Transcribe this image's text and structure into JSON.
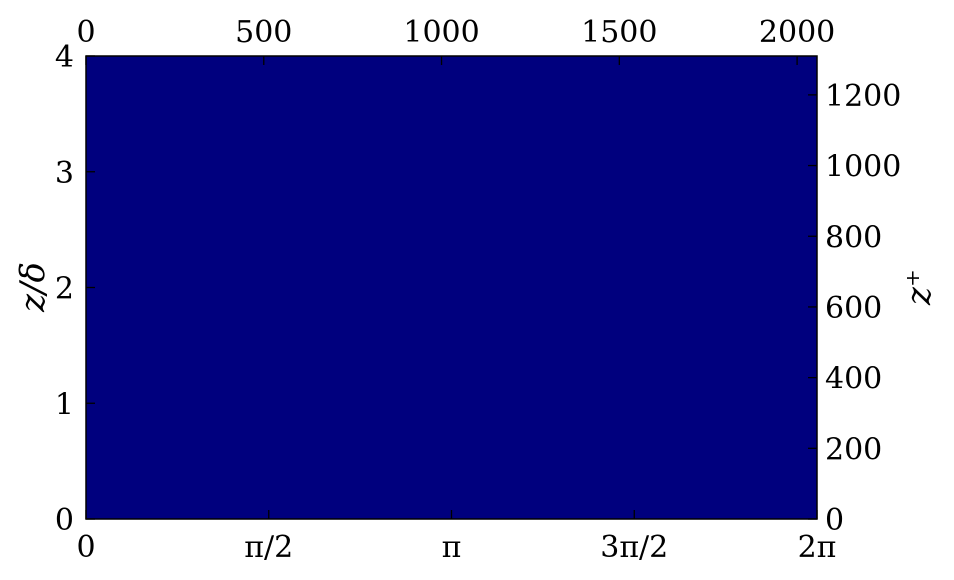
{
  "chart_data": {
    "type": "heatmap",
    "colormap": "jet",
    "colormap_colors": [
      "#00007f",
      "#0000ff",
      "#0080ff",
      "#00ffff",
      "#80ff80",
      "#ffff00",
      "#ff8000",
      "#ff0000",
      "#7f0000"
    ],
    "xlim": [
      0,
      6.283185307
    ],
    "ylim": [
      0,
      4
    ],
    "x_ticks": [
      {
        "value": 0,
        "label": "0"
      },
      {
        "value": 1.570796327,
        "label": "π/2"
      },
      {
        "value": 3.141592654,
        "label": "π"
      },
      {
        "value": 4.71238898,
        "label": "3π/2"
      },
      {
        "value": 6.283185307,
        "label": "2π"
      }
    ],
    "y_ticks": [
      {
        "value": 0,
        "label": "0"
      },
      {
        "value": 1,
        "label": "1"
      },
      {
        "value": 2,
        "label": "2"
      },
      {
        "value": 3,
        "label": "3"
      },
      {
        "value": 4,
        "label": "4"
      }
    ],
    "top_xlim": [
      0,
      2056
    ],
    "top_ticks": [
      {
        "value": 0,
        "label": "0"
      },
      {
        "value": 500,
        "label": "500"
      },
      {
        "value": 1000,
        "label": "1000"
      },
      {
        "value": 1500,
        "label": "1500"
      },
      {
        "value": 2000,
        "label": "2000"
      }
    ],
    "right_ylim": [
      0,
      1310
    ],
    "right_ticks": [
      {
        "value": 0,
        "label": "0"
      },
      {
        "value": 200,
        "label": "200"
      },
      {
        "value": 400,
        "label": "400"
      },
      {
        "value": 600,
        "label": "600"
      },
      {
        "value": 800,
        "label": "800"
      },
      {
        "value": 1000,
        "label": "1000"
      },
      {
        "value": 1200,
        "label": "1200"
      }
    ],
    "ylabel": "z/δ",
    "ylabel_right": "z⁺",
    "xlabel": "",
    "grid": false,
    "legend": "none"
  }
}
